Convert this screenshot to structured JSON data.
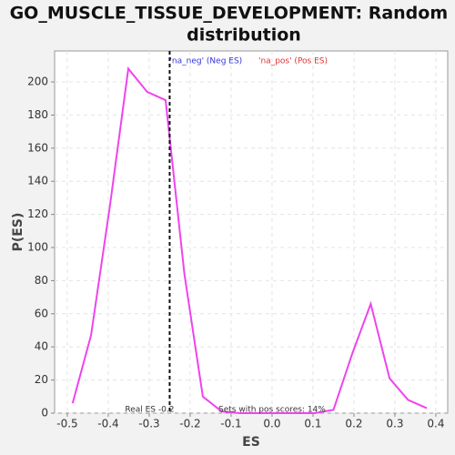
{
  "chart_data": {
    "type": "line",
    "title": "GO_MUSCLE_TISSUE_DEVELOPMENT: Random ES distribution",
    "x_label": "ES",
    "y_label": "P(ES)",
    "legend": [
      {
        "name": "'na_neg' (Neg ES)",
        "color": "#3333dd"
      },
      {
        "name": "'na_pos' (Pos ES)",
        "color": "#dd3333"
      }
    ],
    "annotations": [
      "Real ES -0.2",
      "Sets with pos scores: 14%"
    ],
    "marker_x": -0.25,
    "x": [
      -0.487,
      -0.442,
      -0.396,
      -0.351,
      -0.305,
      -0.26,
      -0.214,
      -0.169,
      -0.123,
      -0.078,
      -0.032,
      0.013,
      0.059,
      0.104,
      0.15,
      0.196,
      0.241,
      0.287,
      0.332,
      0.378
    ],
    "series": [
      {
        "name": "P(ES)",
        "color": "#ee44ee",
        "values": [
          6,
          47,
          125,
          208,
          194,
          189,
          84,
          10,
          1,
          0,
          0,
          0,
          0,
          0,
          2,
          36,
          66,
          21,
          8,
          3
        ]
      }
    ],
    "xlim": [
      -0.531,
      0.429
    ],
    "xticks": [
      -0.5,
      -0.4,
      -0.3,
      -0.2,
      -0.1,
      {
        "value": 0,
        "label": "0.0"
      },
      0.1,
      0.2,
      0.3,
      0.4
    ],
    "ylim": [
      0,
      218.7
    ],
    "yticks": [
      0,
      20,
      40,
      60,
      80,
      100,
      120,
      140,
      160,
      180,
      200
    ],
    "grid": true
  }
}
